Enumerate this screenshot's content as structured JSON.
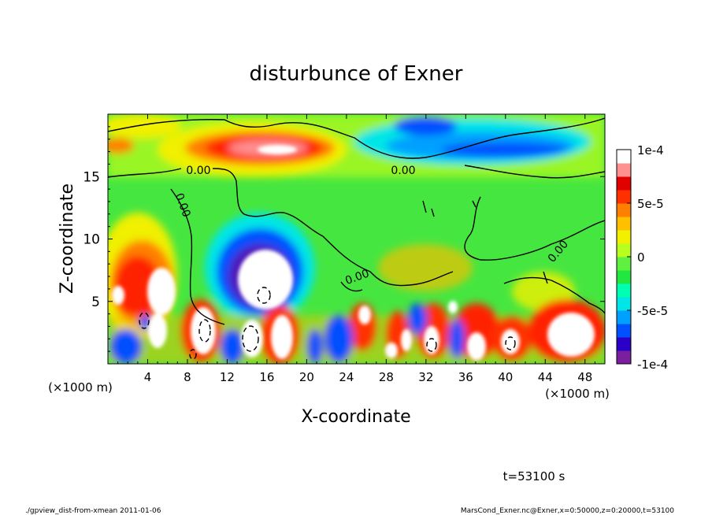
{
  "chart_data": {
    "type": "heatmap",
    "title": "disturbunce of Exner",
    "xlabel": "X-coordinate",
    "ylabel": "Z-coordinate",
    "x_unit_label": "(×1000 m)",
    "y_unit_label": "(×1000 m)",
    "xlim": [
      0,
      50
    ],
    "ylim": [
      0,
      20
    ],
    "x_ticks": [
      4,
      8,
      12,
      16,
      20,
      24,
      28,
      32,
      36,
      40,
      44,
      48
    ],
    "y_ticks": [
      5,
      10,
      15
    ],
    "colorbar": {
      "min": -0.0001,
      "max": 0.0001,
      "tick_values": [
        0.0001,
        5e-05,
        0,
        -5e-05,
        -0.0001
      ],
      "tick_labels": [
        "1e-4",
        "5e-5",
        "0",
        "-5e-5",
        "-1e-4"
      ],
      "colors": [
        "#7a1fa0",
        "#2a00c8",
        "#0050ff",
        "#00a0ff",
        "#00e6e6",
        "#00ffb0",
        "#20e840",
        "#60f040",
        "#b8ff20",
        "#f0f000",
        "#ffc000",
        "#ff8000",
        "#ff3000",
        "#e00000",
        "#ff9090",
        "#ffffff"
      ]
    },
    "contour_labels": [
      "0.00",
      "0.00",
      "0.00",
      "0.00",
      "0.00"
    ],
    "annotation": "t=53100 s"
  },
  "footer": {
    "left": "./gpview_dist-from-xmean  2011-01-06",
    "right": "MarsCond_Exner.nc@Exner,x=0:50000,z=0:20000,t=53100"
  }
}
